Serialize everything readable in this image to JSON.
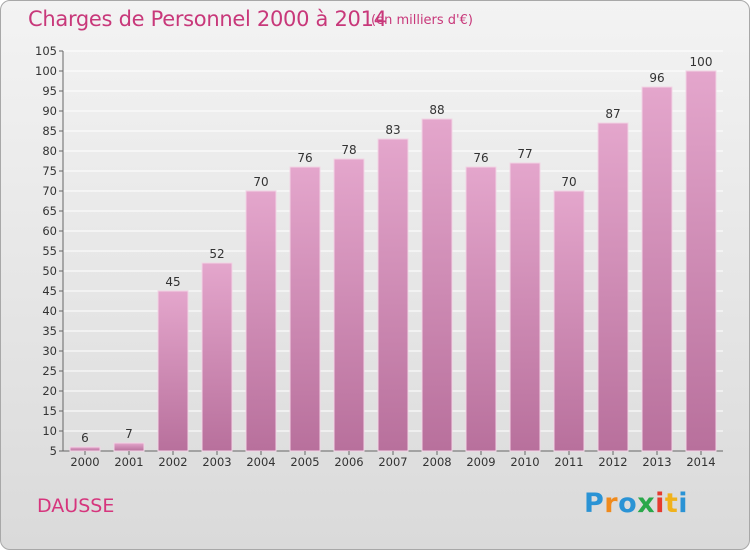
{
  "header": {
    "title": "Charges de Personnel 2000 à 2014",
    "subtitle": "(en milliers d'€)"
  },
  "footer": {
    "place": "DAUSSE",
    "brand": "Proxiti",
    "brand_letters": [
      "P",
      "r",
      "o",
      "x",
      "i",
      "t",
      "i"
    ],
    "brand_colors": [
      "#2a93d5",
      "#f08a1c",
      "#2a93d5",
      "#2aa84a",
      "#e53a2f",
      "#f0b21c",
      "#2a93d5"
    ]
  },
  "colors": {
    "bar_top": "#e4a6cc",
    "bar_bottom": "#b8709c",
    "title": "#c8387a",
    "grid": "#ffffff"
  },
  "chart_data": {
    "type": "bar",
    "title": "Charges de Personnel 2000 à 2014",
    "subtitle": "(en milliers d'€)",
    "categories": [
      "2000",
      "2001",
      "2002",
      "2003",
      "2004",
      "2005",
      "2006",
      "2007",
      "2008",
      "2009",
      "2010",
      "2011",
      "2012",
      "2013",
      "2014"
    ],
    "values": [
      6,
      7,
      45,
      52,
      70,
      76,
      78,
      83,
      88,
      76,
      77,
      70,
      87,
      96,
      100
    ],
    "ylim": [
      5,
      105
    ],
    "yticks": [
      5,
      10,
      15,
      20,
      25,
      30,
      35,
      40,
      45,
      50,
      55,
      60,
      65,
      70,
      75,
      80,
      85,
      90,
      95,
      100,
      105
    ],
    "grid": true,
    "data_labels": true
  }
}
